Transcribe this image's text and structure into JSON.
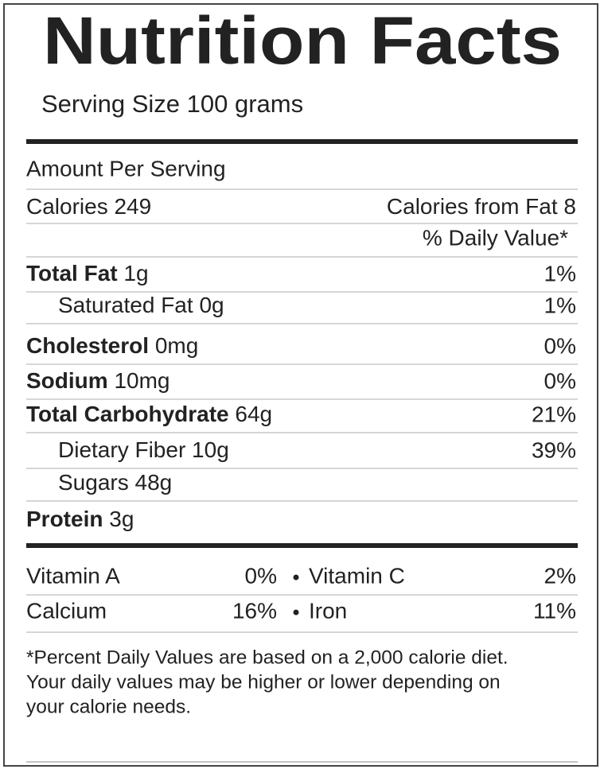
{
  "header": {
    "title": "Nutrition Facts",
    "serving_size": "Serving Size 100 grams"
  },
  "amount_per_serving": "Amount Per Serving",
  "calories": {
    "label": "Calories",
    "value": "249",
    "from_fat_label": "Calories from Fat",
    "from_fat_value": "8"
  },
  "daily_value_header": "% Daily Value*",
  "nutrients": [
    {
      "name": "Total Fat",
      "amount": "1g",
      "daily_value": "1%",
      "sub": [
        {
          "name": "Saturated Fat",
          "amount": "0g",
          "daily_value": "1%"
        }
      ]
    },
    {
      "name": "Cholesterol",
      "amount": "0mg",
      "daily_value": "0%"
    },
    {
      "name": "Sodium",
      "amount": "10mg",
      "daily_value": "0%"
    },
    {
      "name": "Total Carbohydrate",
      "amount": "64g",
      "daily_value": "21%",
      "sub": [
        {
          "name": "Dietary Fiber",
          "amount": "10g",
          "daily_value": "39%"
        },
        {
          "name": "Sugars",
          "amount": "48g"
        }
      ]
    },
    {
      "name": "Protein",
      "amount": "3g"
    }
  ],
  "vitamins": [
    [
      {
        "name": "Vitamin A",
        "value": "0%"
      },
      {
        "name": "Vitamin C",
        "value": "2%"
      }
    ],
    [
      {
        "name": "Calcium",
        "value": "16%"
      },
      {
        "name": "Iron",
        "value": "11%"
      }
    ]
  ],
  "footnote": [
    "*Percent Daily Values are based on a 2,000 calorie diet.",
    "Your daily values may be higher or lower depending on",
    "your calorie needs."
  ]
}
